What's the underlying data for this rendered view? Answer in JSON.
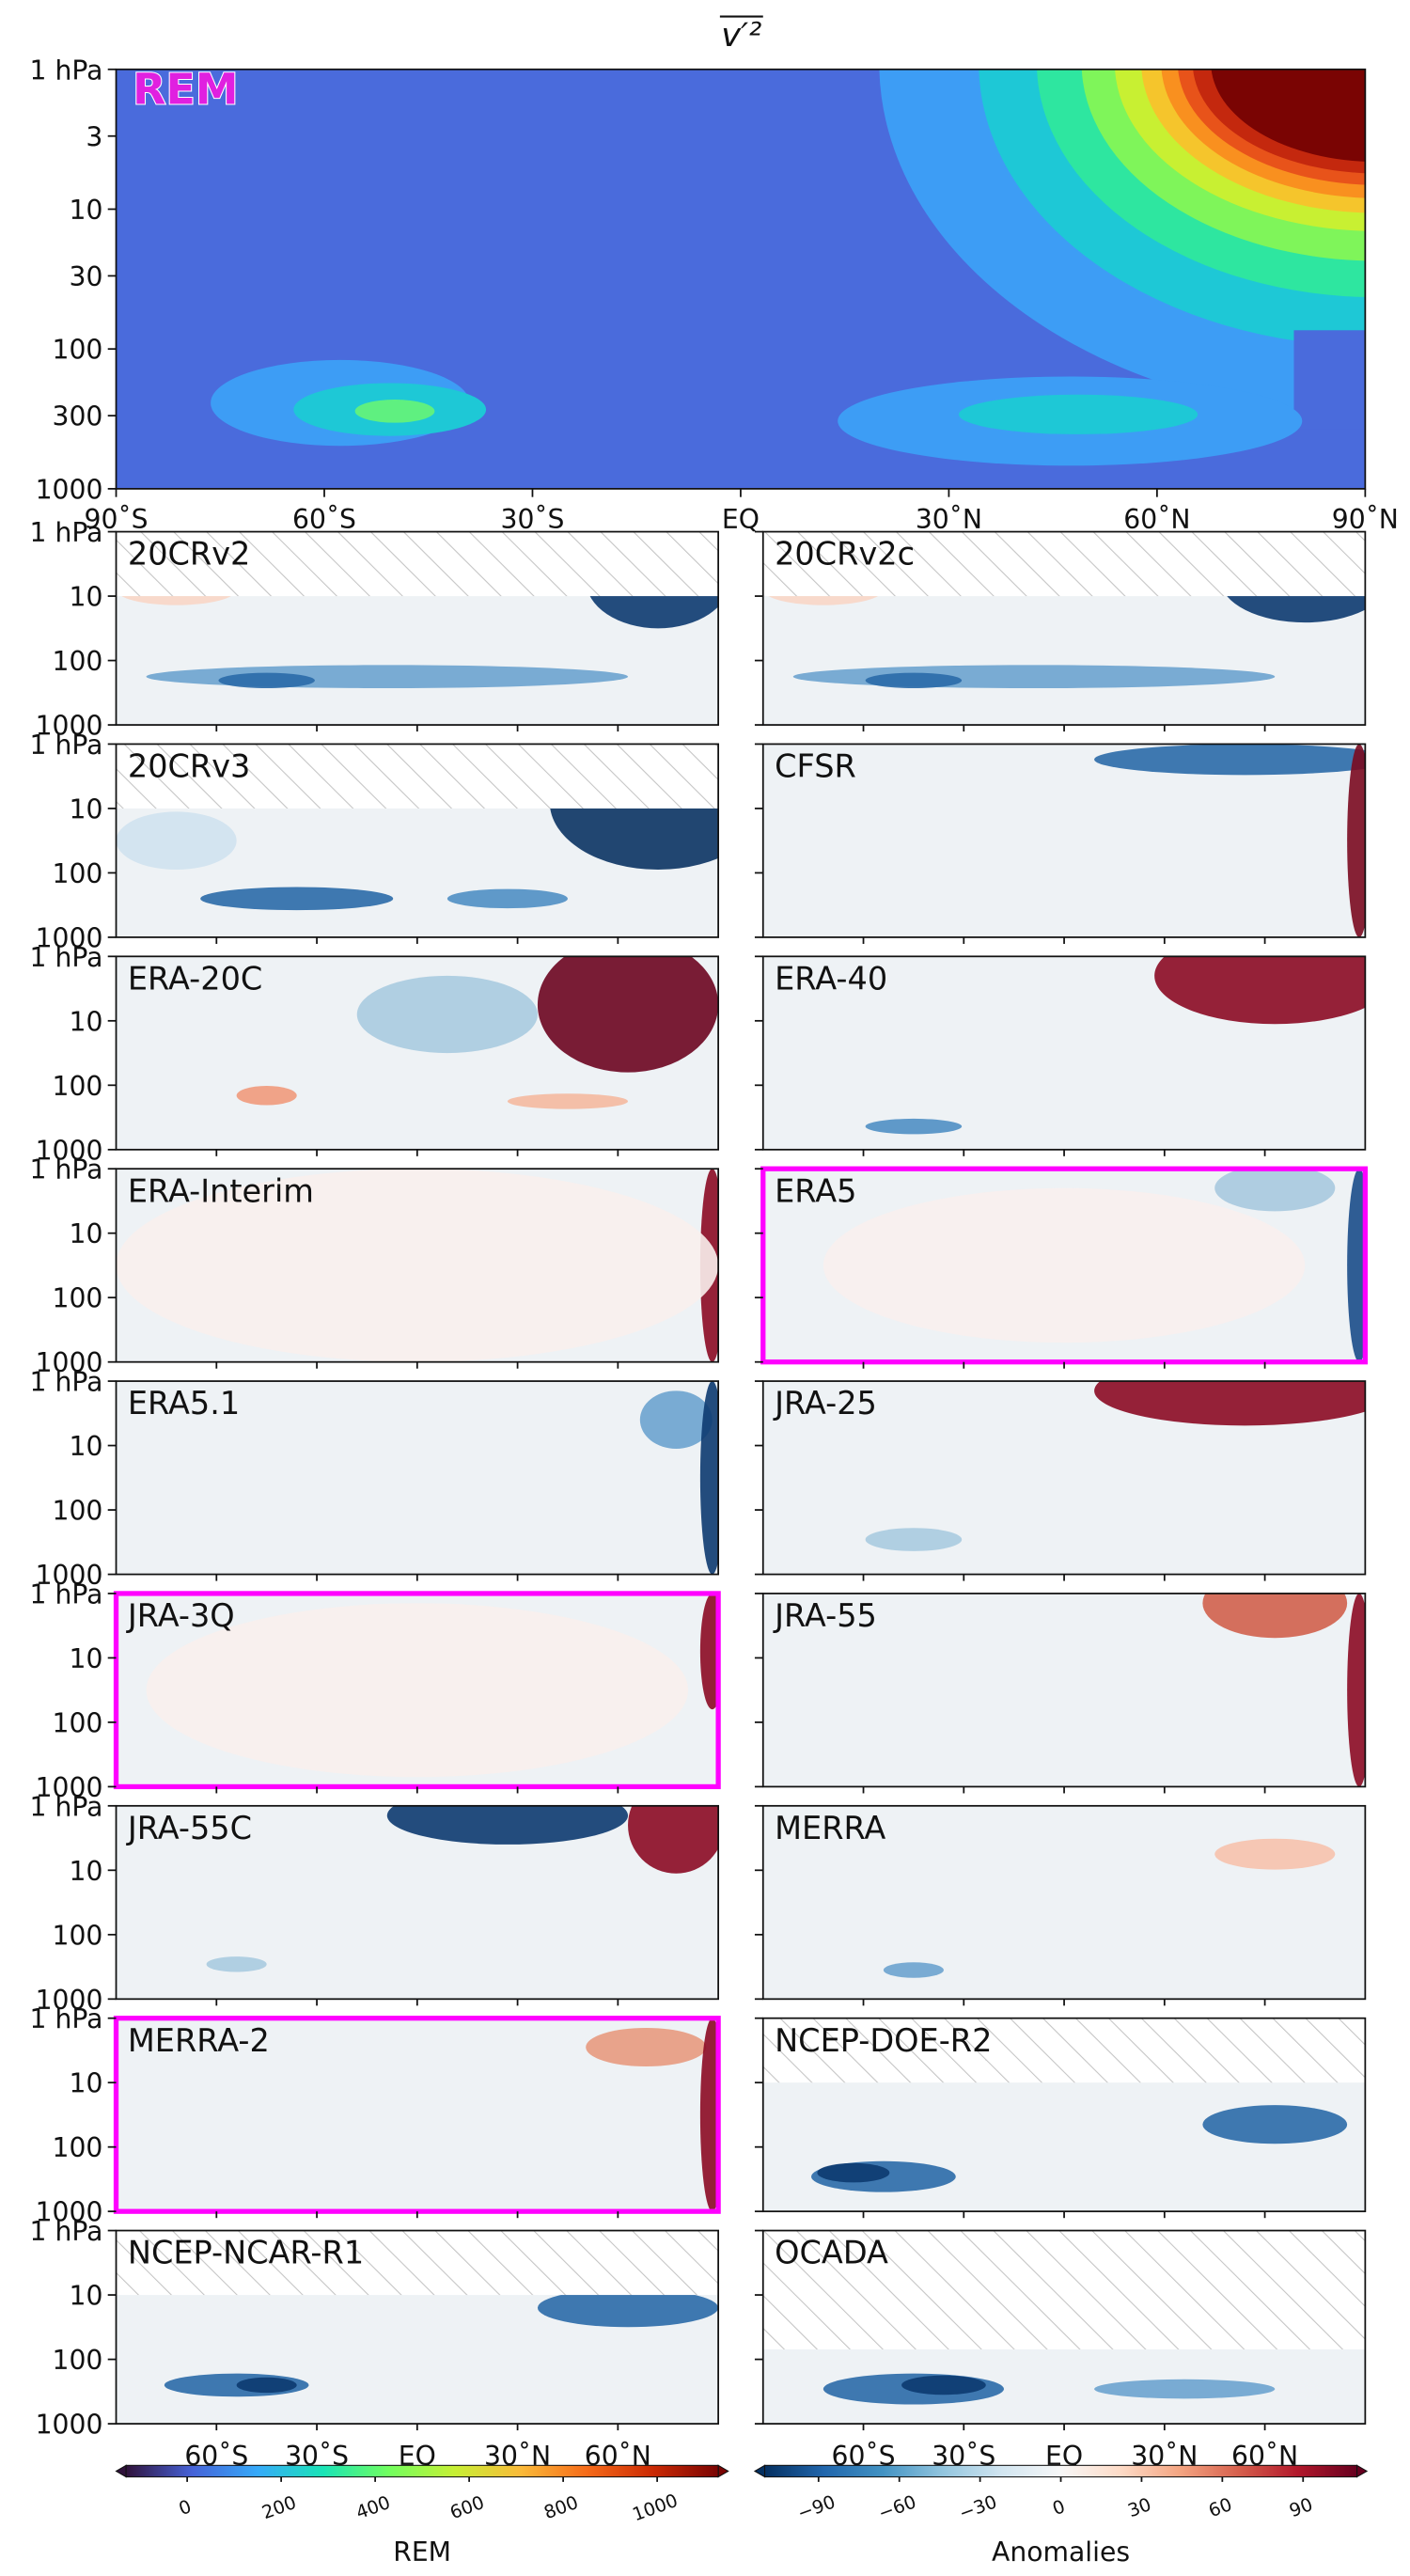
{
  "chart_data": {
    "type": "contour",
    "title": "v′²",
    "label": "REM",
    "xlim": [
      -90,
      90
    ],
    "xticks": [
      {
        "value": -90,
        "label": "90˚S"
      },
      {
        "value": -60,
        "label": "60˚S"
      },
      {
        "value": -30,
        "label": "30˚S"
      },
      {
        "value": 0,
        "label": "EQ"
      },
      {
        "value": 30,
        "label": "30˚N"
      },
      {
        "value": 60,
        "label": "60˚N"
      },
      {
        "value": 90,
        "label": "90˚N"
      }
    ],
    "ylim": [
      1000,
      1
    ],
    "log_y": true,
    "yticks": [
      {
        "value": 1,
        "label": "1 hPa"
      },
      3,
      10,
      30,
      100,
      300,
      1000
    ],
    "panel_yticks": [
      {
        "value": 1,
        "label": "1 hPa"
      },
      10,
      100,
      1000
    ],
    "panel_xticks": [
      {
        "value": -60,
        "label": "60˚S"
      },
      {
        "value": -30,
        "label": "30˚S"
      },
      {
        "value": 0,
        "label": "EQ"
      },
      {
        "value": 30,
        "label": "30˚N"
      },
      {
        "value": 60,
        "label": "60˚N"
      }
    ],
    "panels": [
      {
        "name": "20CRv2",
        "hatched_above": 10
      },
      {
        "name": "20CRv2c",
        "hatched_above": 10
      },
      {
        "name": "20CRv3",
        "hatched_above": 10
      },
      {
        "name": "CFSR"
      },
      {
        "name": "ERA-20C"
      },
      {
        "name": "ERA-40"
      },
      {
        "name": "ERA-Interim"
      },
      {
        "name": "ERA5",
        "highlight": true
      },
      {
        "name": "ERA5.1"
      },
      {
        "name": "JRA-25"
      },
      {
        "name": "JRA-3Q",
        "highlight": true
      },
      {
        "name": "JRA-55"
      },
      {
        "name": "JRA-55C"
      },
      {
        "name": "MERRA"
      },
      {
        "name": "MERRA-2",
        "highlight": true
      },
      {
        "name": "NCEP-DOE-R2",
        "hatched_above": 10
      },
      {
        "name": "NCEP-NCAR-R1",
        "hatched_above": 10
      },
      {
        "name": "OCADA",
        "hatched_above": 70
      }
    ],
    "colorbars": [
      {
        "label": "REM",
        "lim": [
          -130,
          1130
        ],
        "ticks": [
          0,
          200,
          400,
          600,
          800,
          1000
        ],
        "colors": [
          "#30123b",
          "#4662d7",
          "#36aaf9",
          "#1ae4b6",
          "#72fe5e",
          "#c7ef34",
          "#faba39",
          "#f66b19",
          "#cb2a04",
          "#7a0403"
        ]
      },
      {
        "label": "Anomalies",
        "lim": [
          -110,
          110
        ],
        "ticks": [
          {
            "value": -90,
            "label": "−90"
          },
          {
            "value": -60,
            "label": "−60"
          },
          {
            "value": -30,
            "label": "−30"
          },
          0,
          30,
          60,
          90
        ],
        "colors": [
          "#053061",
          "#2166ac",
          "#4393c3",
          "#92c5de",
          "#d1e5f0",
          "#f7f7f7",
          "#fddbc7",
          "#f4a582",
          "#d6604d",
          "#b2182b",
          "#67001f"
        ]
      }
    ]
  }
}
